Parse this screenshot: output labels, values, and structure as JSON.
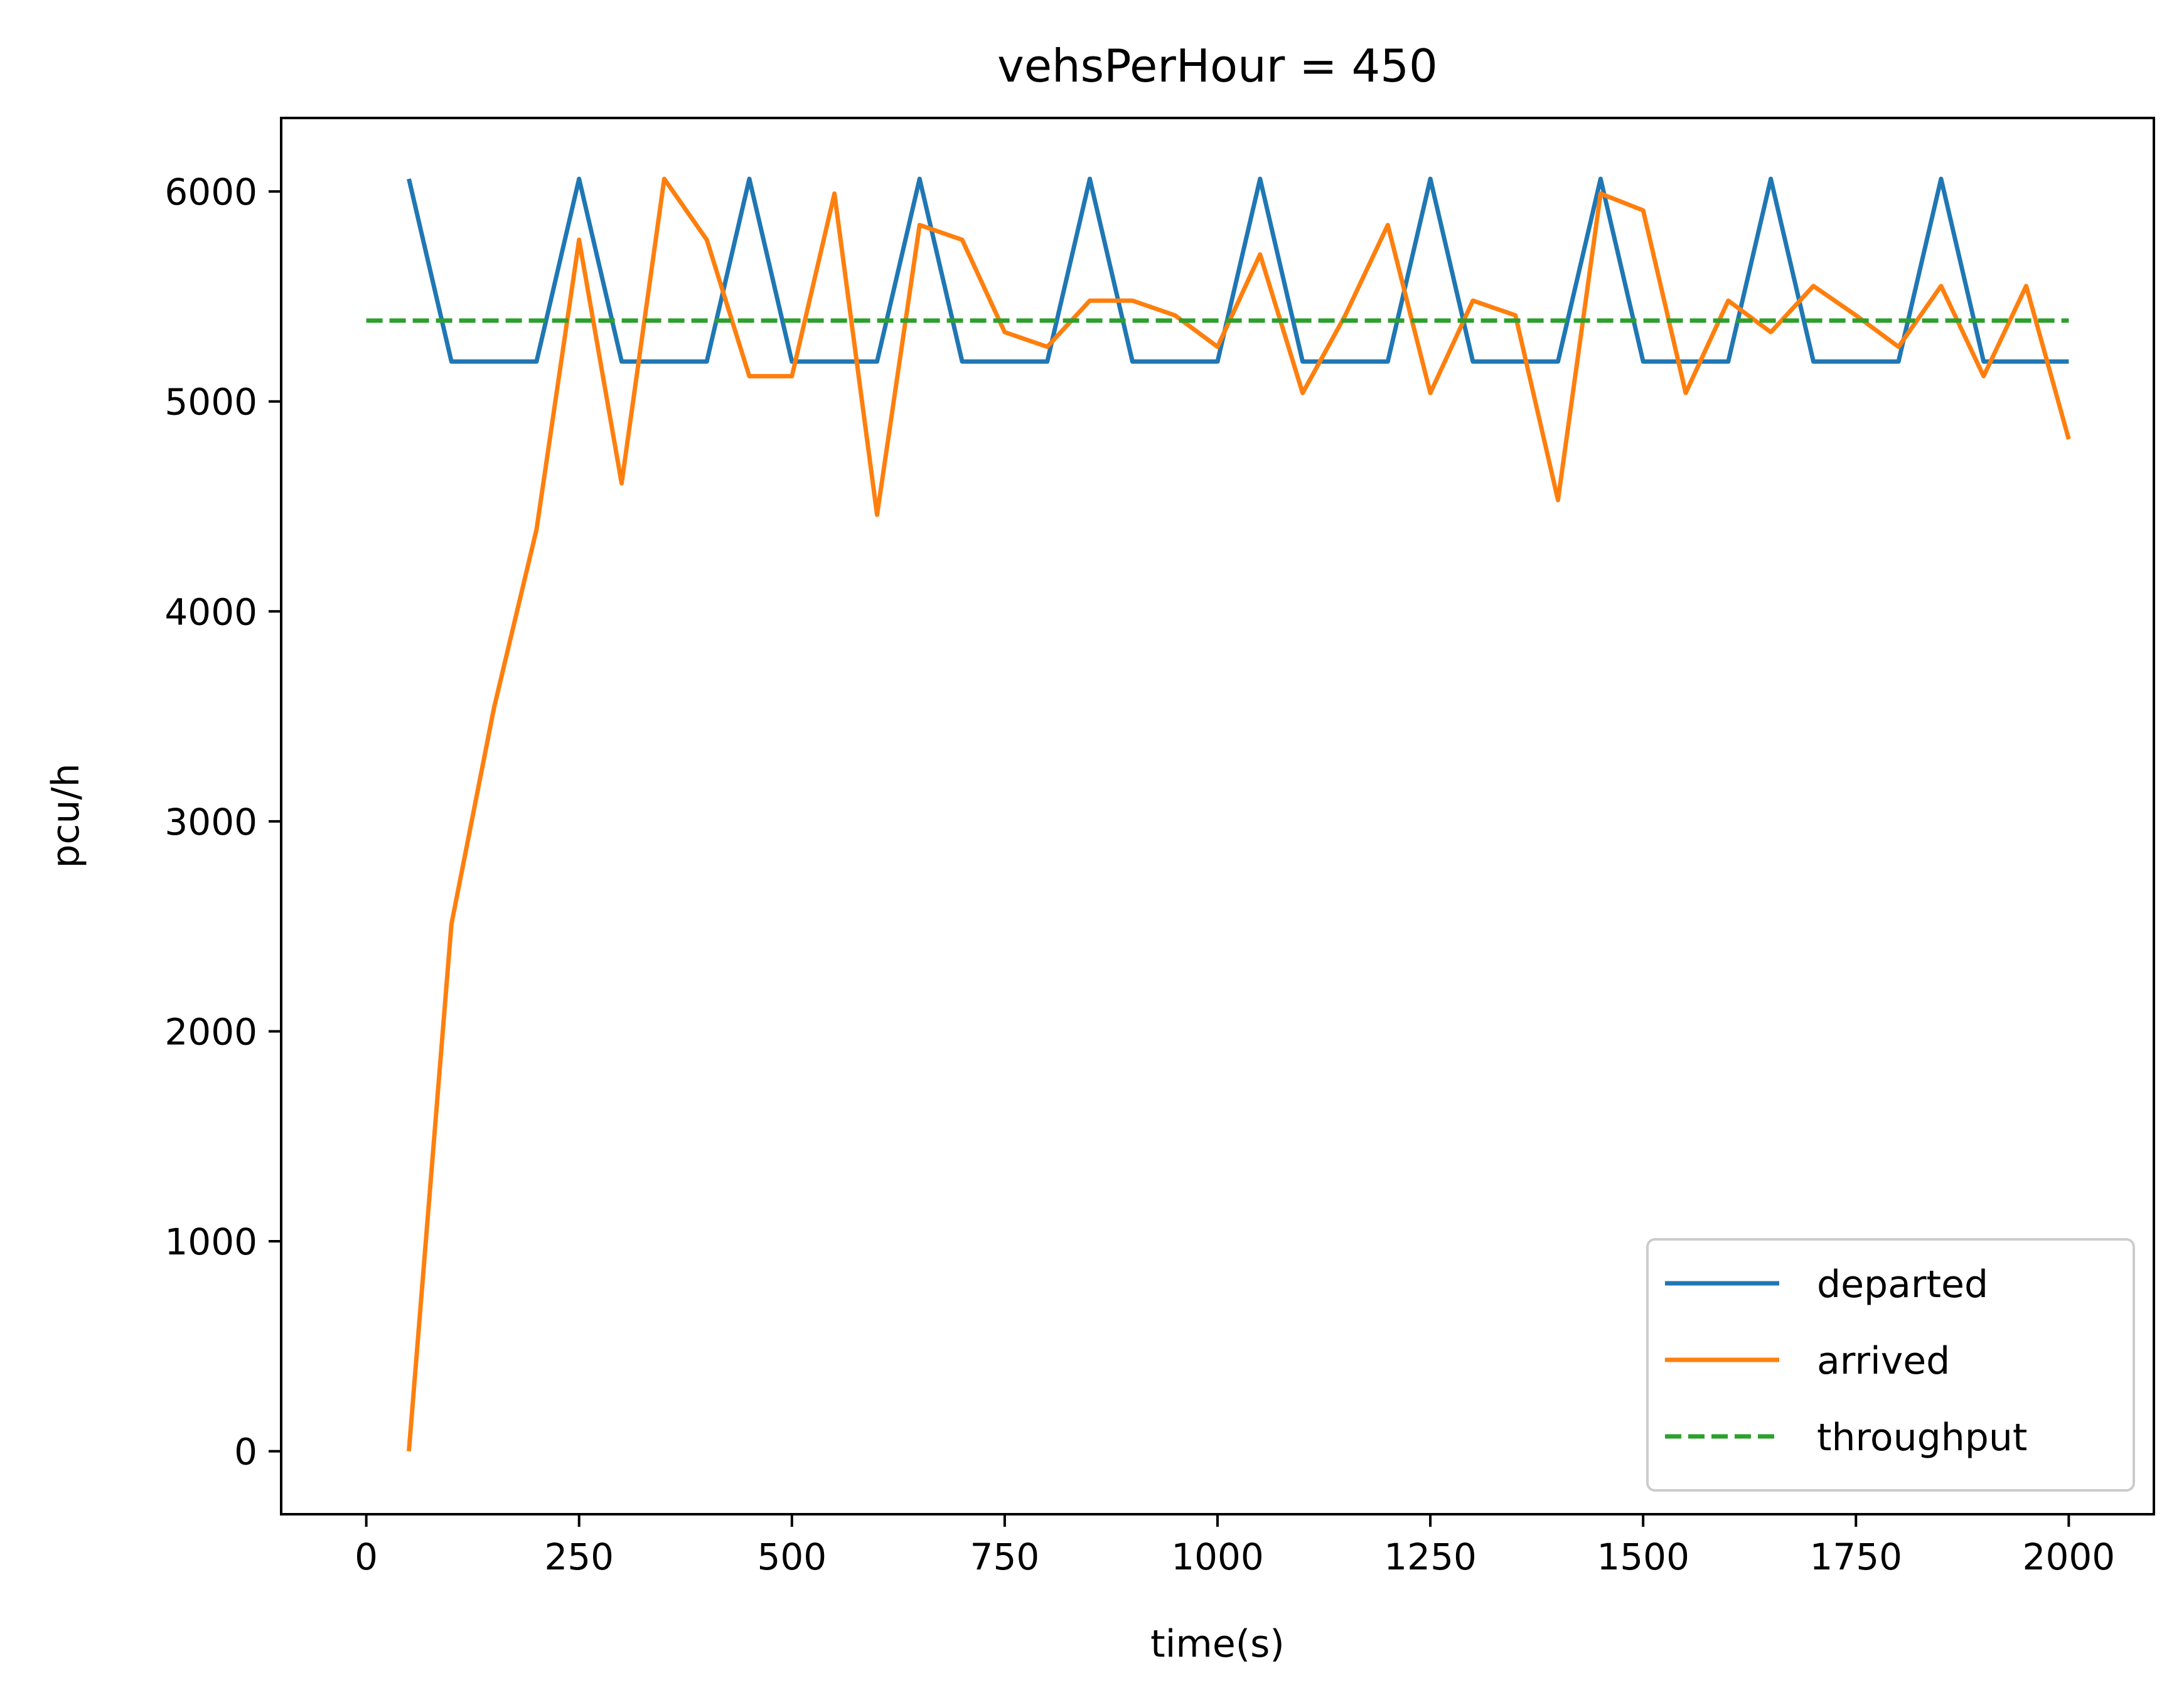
{
  "chart_data": {
    "type": "line",
    "title": "vehsPerHour = 450",
    "xlabel": "time(s)",
    "ylabel": "pcu/h",
    "xlim": [
      -100,
      2100
    ],
    "ylim": [
      -300,
      6350
    ],
    "xticks": [
      0,
      250,
      500,
      750,
      1000,
      1250,
      1500,
      1750,
      2000
    ],
    "yticks": [
      0,
      1000,
      2000,
      3000,
      4000,
      5000,
      6000
    ],
    "grid": false,
    "legend_position": "lower right",
    "x": [
      50,
      100,
      150,
      200,
      250,
      300,
      350,
      400,
      450,
      500,
      550,
      600,
      650,
      700,
      750,
      800,
      850,
      900,
      950,
      1000,
      1050,
      1100,
      1150,
      1200,
      1250,
      1300,
      1350,
      1400,
      1450,
      1500,
      1550,
      1600,
      1650,
      1700,
      1750,
      1800,
      1850,
      1900,
      1950,
      2000
    ],
    "series": [
      {
        "name": "departed",
        "color": "#1f77b4",
        "style": "solid",
        "values": [
          6060,
          5190,
          5190,
          5190,
          6060,
          5190,
          5190,
          5190,
          6060,
          5190,
          5190,
          5190,
          6060,
          5190,
          5190,
          5190,
          6060,
          5190,
          5190,
          5190,
          6060,
          5190,
          5190,
          5190,
          6060,
          5190,
          5190,
          5190,
          6060,
          5190,
          5190,
          5190,
          6060,
          5190,
          5190,
          5190,
          6060,
          5190,
          5190,
          5190
        ]
      },
      {
        "name": "arrived",
        "color": "#ff7f0e",
        "style": "solid",
        "values": [
          0,
          2510,
          3540,
          4390,
          5770,
          4610,
          6060,
          5770,
          5120,
          5120,
          5990,
          4460,
          5840,
          5770,
          5330,
          5260,
          5480,
          5480,
          5410,
          5260,
          5700,
          5040,
          5410,
          5840,
          5040,
          5480,
          5410,
          4530,
          5990,
          5910,
          5040,
          5480,
          5330,
          5550,
          5410,
          5260,
          5550,
          5120,
          5550,
          4820
        ]
      },
      {
        "name": "throughput",
        "color": "#2ca02c",
        "style": "dashed",
        "x": [
          0,
          2000
        ],
        "values": [
          5385,
          5385
        ]
      }
    ]
  }
}
